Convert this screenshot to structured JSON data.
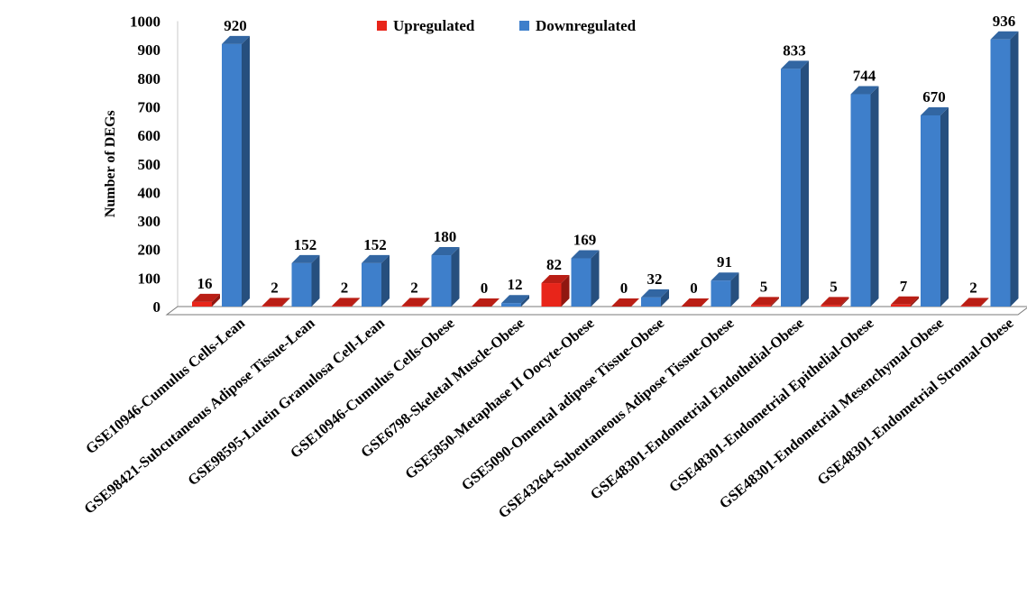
{
  "chart_data": {
    "type": "bar",
    "ylabel": "Number of DEGs",
    "ylim": [
      0,
      1000
    ],
    "yticks": [
      "0",
      "100",
      "200",
      "300",
      "400",
      "500",
      "600",
      "700",
      "800",
      "900",
      "1000"
    ],
    "grid": false,
    "legend_position": "top-center",
    "style": "3d-column",
    "categories": [
      "GSE10946-Cumulus Cells-Lean",
      "GSE98421-Subcutaneous Adipose Tissue-Lean",
      "GSE98595-Lutein Granulosa Cell-Lean",
      "GSE10946-Cumulus Cells-Obese",
      "GSE6798-Skeletal Muscle-Obese",
      "GSE5850-Metaphase II Oocyte-Obese",
      "GSE5090-Omental adipose Tissue-Obese",
      "GSE43264-Subeutaneous Adipose Tissue-Obese",
      "GSE48301-Endometrial Endothelial-Obese",
      "GSE48301-Endometrial Epithelial-Obese",
      "GSE48301-Endometrial Mesenchymal-Obese",
      "GSE48301-Endometrial Stromal-Obese"
    ],
    "series": [
      {
        "name": "Upregulated",
        "color": "#e8251a",
        "values": [
          16,
          2,
          2,
          2,
          0,
          82,
          0,
          0,
          5,
          5,
          7,
          2
        ],
        "labels": [
          "16",
          "2",
          "2",
          "2",
          "0",
          "82",
          "0",
          "0",
          "5",
          "5",
          "7",
          "2"
        ]
      },
      {
        "name": "Downregulated",
        "color": "#3e7fcb",
        "values": [
          920,
          152,
          152,
          180,
          12,
          169,
          32,
          91,
          833,
          744,
          670,
          936
        ],
        "labels": [
          "920",
          "152",
          "152",
          "180",
          "12",
          "169",
          "32",
          "91",
          "833",
          "744",
          "670",
          "936"
        ]
      }
    ]
  }
}
